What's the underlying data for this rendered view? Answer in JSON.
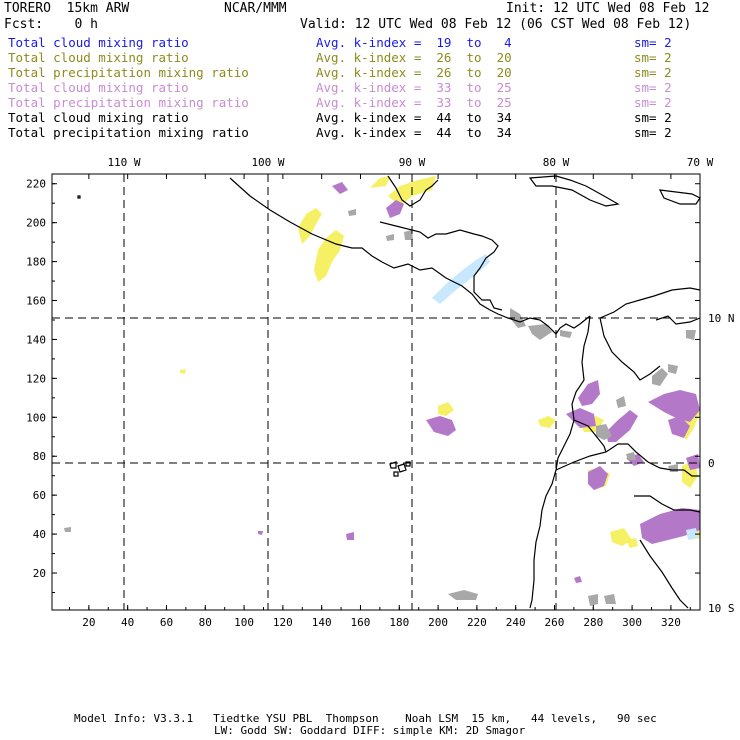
{
  "header": {
    "model": "TORERO  15km ARW",
    "org": "NCAR/MMM",
    "init": "Init: 12 UTC Wed 08 Feb 12",
    "fcst": "Fcst:    0 h",
    "valid": "Valid: 12 UTC Wed 08 Feb 12 (06 CST Wed 08 Feb 12)"
  },
  "legend": [
    {
      "name": "Total cloud mixing ratio",
      "k": "Avg. k-index =  19  to   4",
      "sm": "sm= 2",
      "color": "#1a1ae6"
    },
    {
      "name": "Total cloud mixing ratio",
      "k": "Avg. k-index =  26  to  20",
      "sm": "sm= 2",
      "color": "#8c8c1e"
    },
    {
      "name": "Total precipitation mixing ratio",
      "k": "Avg. k-index =  26  to  20",
      "sm": "sm= 2",
      "color": "#8c8c1e"
    },
    {
      "name": "Total cloud mixing ratio",
      "k": "Avg. k-index =  33  to  25",
      "sm": "sm= 2",
      "color": "#c88cd2"
    },
    {
      "name": "Total precipitation mixing ratio",
      "k": "Avg. k-index =  33  to  25",
      "sm": "sm= 2",
      "color": "#c88cd2"
    },
    {
      "name": "Total cloud mixing ratio",
      "k": "Avg. k-index =  44  to  34",
      "sm": "sm= 2",
      "color": "#000000"
    },
    {
      "name": "Total precipitation mixing ratio",
      "k": "Avg. k-index =  44  to  34",
      "sm": "sm= 2",
      "color": "#000000"
    }
  ],
  "top_lon_labels": [
    "110 W",
    "100 W",
    "90 W",
    "80 W",
    "70 W"
  ],
  "right_lat_labels": [
    "10 N",
    "0",
    "10 S"
  ],
  "y_ticks": [
    "220",
    "200",
    "180",
    "160",
    "140",
    "120",
    "100",
    "80",
    "60",
    "40",
    "20"
  ],
  "x_ticks": [
    "20",
    "40",
    "60",
    "80",
    "100",
    "120",
    "140",
    "160",
    "180",
    "200",
    "220",
    "240",
    "260",
    "280",
    "300",
    "320"
  ],
  "footer": {
    "line1": "Model Info: V3.3.1   Tiedtke YSU PBL  Thompson    Noah LSM  15 km,   44 levels,   90 sec",
    "line2": "LW: Godd SW: Goddard DIFF: simple KM: 2D Smagor"
  },
  "colors": {
    "yellow": "#f5f064",
    "purple": "#b478c8",
    "gray": "#a8a8a8",
    "lightblue": "#c8e8ff"
  }
}
